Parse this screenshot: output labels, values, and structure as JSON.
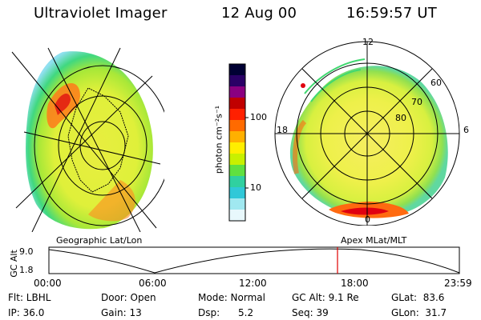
{
  "header": {
    "title": "Ultraviolet Imager",
    "date": "12 Aug 00",
    "time": "16:59:57 UT"
  },
  "left_panel": {
    "label": "Geographic Lat/Lon"
  },
  "right_panel": {
    "label": "Apex MLat/MLT",
    "mlt_labels": [
      "12",
      "18",
      "6",
      "0"
    ],
    "mlat_labels": [
      "60",
      "70",
      "80"
    ]
  },
  "colorbar": {
    "unit_label": "photon cm⁻²s⁻¹",
    "ticks": [
      "100",
      "10"
    ],
    "colors": [
      "#000033",
      "#2a0066",
      "#8a0080",
      "#c00000",
      "#ff2000",
      "#ff6a00",
      "#ffb000",
      "#ffee00",
      "#c8f000",
      "#60e040",
      "#30d0a0",
      "#30c8d8",
      "#a0e8f0",
      "#e8f8fc"
    ]
  },
  "timeline": {
    "y_label": "GC Alt",
    "y_ticks": [
      "9.0",
      "1.8"
    ],
    "x_ticks": [
      "00:00",
      "06:00",
      "12:00",
      "18:00",
      "23:59"
    ],
    "marker_color": "#e00000"
  },
  "info": {
    "filter": "Flt: LBHL",
    "ip": "IP: 36.0",
    "door": "Door: Open",
    "gain": "Gain: 13",
    "mode": "Mode: Normal",
    "dsp": "Dsp:      5.2",
    "gc_alt": "GC Alt: 9.1 Re",
    "seq": "Seq: 39",
    "glat": "GLat:  83.6",
    "glon": "GLon:  31.7"
  }
}
